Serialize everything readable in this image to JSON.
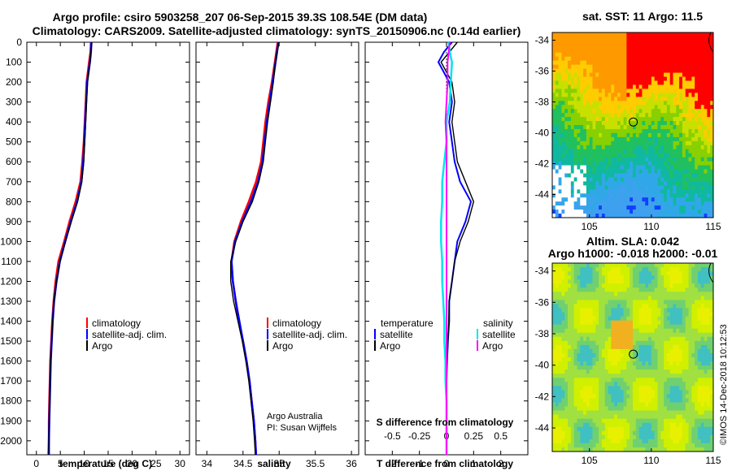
{
  "title_line1": "Argo profile: csiro 5903258_207 06-Sep-2015 39.3S 108.54E (DM data)",
  "title_line2": "Climatology: CARS2009. Satellite-adjusted climatology: synTS_20150906.nc (0.14d earlier)",
  "colors": {
    "climatology": "#ff0000",
    "satellite": "#0000ff",
    "argo": "#000000",
    "sat_salinity": "#00e5ee",
    "argo_salinity": "#ff00ff"
  },
  "depth_ticks": [
    "0",
    "100",
    "200",
    "300",
    "400",
    "500",
    "600",
    "700",
    "800",
    "900",
    "1000",
    "1100",
    "1200",
    "1300",
    "1400",
    "1500",
    "1600",
    "1700",
    "1800",
    "1900",
    "2000"
  ],
  "chart_data": [
    {
      "type": "line",
      "name": "temperature",
      "xlabel": "temperature (deg C)",
      "x_ticks": [
        "0",
        "5",
        "10",
        "15",
        "20",
        "25",
        "30"
      ],
      "xlim": [
        -2,
        32
      ],
      "ylim": [
        2070,
        0
      ],
      "depths": [
        0,
        50,
        100,
        200,
        300,
        400,
        500,
        600,
        700,
        800,
        900,
        1000,
        1100,
        1200,
        1300,
        1400,
        1500,
        1600,
        1700,
        1800,
        1900,
        2000,
        2070
      ],
      "series": [
        {
          "name": "climatology",
          "values": [
            11.4,
            11.3,
            11.0,
            10.5,
            10.3,
            10.1,
            9.9,
            9.6,
            9.2,
            8.2,
            6.9,
            5.8,
            4.6,
            4.0,
            3.6,
            3.3,
            3.1,
            2.9,
            2.8,
            2.7,
            2.6,
            2.6,
            2.5
          ]
        },
        {
          "name": "satellite-adj. clim.",
          "values": [
            11.5,
            11.4,
            11.2,
            10.6,
            10.4,
            10.2,
            10.0,
            9.8,
            9.4,
            8.5,
            7.2,
            6.0,
            4.9,
            4.2,
            3.7,
            3.4,
            3.2,
            3.0,
            2.9,
            2.8,
            2.7,
            2.6,
            2.6
          ]
        },
        {
          "name": "Argo",
          "values": [
            11.6,
            11.4,
            11.2,
            10.7,
            10.5,
            10.3,
            10.1,
            9.9,
            9.5,
            8.6,
            7.3,
            6.1,
            4.9,
            4.2,
            3.7,
            3.4,
            3.2,
            3.0,
            2.9,
            2.8,
            2.7,
            2.6,
            2.6
          ]
        }
      ],
      "legend": [
        "climatology",
        "satellite-adj. clim.",
        "Argo"
      ]
    },
    {
      "type": "line",
      "name": "salinity",
      "xlabel": "salinity",
      "x_ticks": [
        "34",
        "34.5",
        "35",
        "35.5",
        "36"
      ],
      "xlim": [
        33.85,
        36.1
      ],
      "ylim": [
        2070,
        0
      ],
      "depths": [
        0,
        50,
        100,
        200,
        300,
        400,
        500,
        600,
        700,
        800,
        900,
        1000,
        1100,
        1200,
        1300,
        1400,
        1500,
        1600,
        1700,
        1800,
        1900,
        2000,
        2070
      ],
      "series": [
        {
          "name": "climatology",
          "values": [
            34.98,
            34.96,
            34.94,
            34.9,
            34.85,
            34.81,
            34.78,
            34.75,
            34.68,
            34.58,
            34.47,
            34.38,
            34.34,
            34.36,
            34.4,
            34.44,
            34.5,
            34.55,
            34.59,
            34.62,
            34.65,
            34.67,
            34.68
          ]
        },
        {
          "name": "satellite-adj. clim.",
          "values": [
            34.99,
            34.97,
            34.95,
            34.91,
            34.87,
            34.83,
            34.8,
            34.77,
            34.71,
            34.61,
            34.49,
            34.39,
            34.34,
            34.36,
            34.4,
            34.45,
            34.5,
            34.55,
            34.59,
            34.62,
            34.65,
            34.67,
            34.68
          ]
        },
        {
          "name": "Argo",
          "values": [
            35.0,
            34.97,
            34.95,
            34.92,
            34.88,
            34.84,
            34.81,
            34.78,
            34.72,
            34.63,
            34.5,
            34.4,
            34.33,
            34.33,
            34.37,
            34.43,
            34.49,
            34.54,
            34.58,
            34.61,
            34.64,
            34.66,
            34.67
          ]
        }
      ],
      "legend": [
        "climatology",
        "satellite-adj. clim.",
        "Argo"
      ],
      "credit_line1": "Argo Australia",
      "credit_line2": "PI: Susan Wijffels"
    },
    {
      "type": "line",
      "name": "differences",
      "xlabel": "T difference from climatology",
      "x_ticks": [
        "-2",
        "-1",
        "0",
        "1",
        "2"
      ],
      "xlim": [
        -3,
        3
      ],
      "top_label": "S difference from climatology",
      "top_ticks": [
        "-0.5",
        "-0.25",
        "0",
        "0.25",
        "0.5"
      ],
      "ylim": [
        2070,
        0
      ],
      "depths": [
        0,
        50,
        100,
        200,
        300,
        400,
        500,
        600,
        700,
        800,
        900,
        1000,
        1100,
        1200,
        1300,
        1400,
        1500,
        1600,
        1700,
        1800,
        1900,
        2000,
        2070
      ],
      "series": [
        {
          "name": "temperature satellite",
          "values": [
            0.2,
            -0.1,
            -0.3,
            0.1,
            0.2,
            0.1,
            0.2,
            0.3,
            0.5,
            0.9,
            0.7,
            0.4,
            0.3,
            0.2,
            0.1,
            0.1,
            0.05,
            0.02,
            0.0,
            0.0,
            0.0,
            0.0,
            0.0
          ]
        },
        {
          "name": "temperature Argo",
          "values": [
            0.4,
            0.1,
            -0.2,
            0.2,
            0.3,
            0.2,
            0.3,
            0.4,
            0.7,
            1.0,
            0.8,
            0.5,
            0.3,
            0.2,
            0.1,
            0.08,
            0.05,
            0.02,
            0.0,
            0.0,
            0.0,
            0.0,
            0.0
          ]
        },
        {
          "name": "salinity satellite",
          "values": [
            0.02,
            0.03,
            0.05,
            0.04,
            0.03,
            0.0,
            0.0,
            -0.02,
            -0.04,
            -0.04,
            -0.05,
            -0.05,
            -0.04,
            -0.04,
            -0.03,
            -0.02,
            -0.02,
            -0.01,
            -0.01,
            0.0,
            0.0,
            0.0,
            0.0
          ]
        },
        {
          "name": "salinity Argo",
          "values": [
            0.03,
            0.02,
            0.01,
            0.01,
            0.0,
            -0.01,
            0.0,
            0.0,
            0.0,
            0.0,
            0.0,
            0.0,
            0.0,
            0.0,
            0.0,
            0.0,
            0.0,
            0.0,
            0.0,
            0.0,
            0.0,
            0.0,
            0.0
          ]
        }
      ],
      "legend_left_title": "temperature",
      "legend_right_title": "salinity",
      "legend_satellite": "satellite",
      "legend_argo": "Argo"
    },
    {
      "type": "heatmap",
      "name": "sst_map",
      "title": "sat. SST: 11 Argo: 11.5",
      "lon_ticks": [
        "105",
        "110",
        "115"
      ],
      "lat_ticks": [
        "-34",
        "-36",
        "-38",
        "-40",
        "-42",
        "-44"
      ],
      "lon_range": [
        102,
        115
      ],
      "lat_range": [
        -45.5,
        -33.5
      ],
      "argo_position": {
        "lon": 108.54,
        "lat": -39.3
      }
    },
    {
      "type": "heatmap",
      "name": "sla_map",
      "title": "Altim. SLA: 0.042",
      "subtitle": "Argo h1000: -0.018 h2000: -0.01",
      "lon_ticks": [
        "105",
        "110",
        "115"
      ],
      "lat_ticks": [
        "-34",
        "-36",
        "-38",
        "-40",
        "-42",
        "-44"
      ],
      "lon_range": [
        102,
        115
      ],
      "lat_range": [
        -45.5,
        -33.5
      ],
      "argo_position": {
        "lon": 108.54,
        "lat": -39.3
      }
    }
  ],
  "stamp": "©IMOS 14-Dec-2018 10:12:53"
}
